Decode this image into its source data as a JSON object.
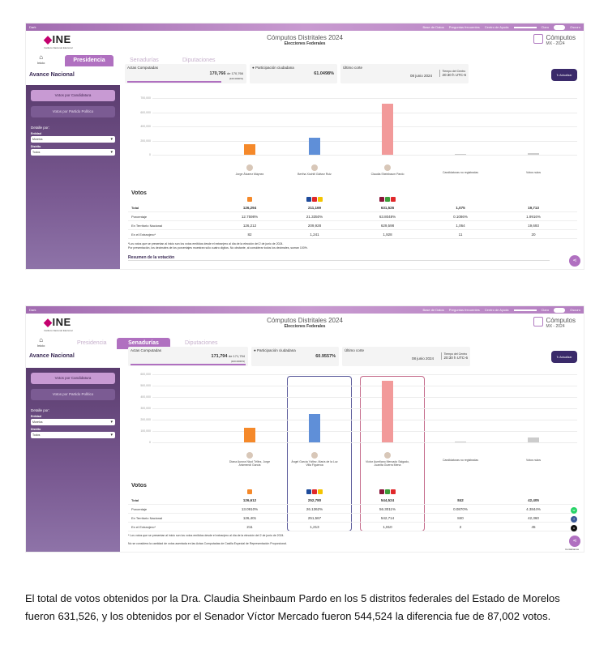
{
  "screen1": {
    "topbar": {
      "left_label": "Dark",
      "links": [
        "Base de Datos",
        "Preguntas frecuentes",
        "Centro de Ayuda"
      ],
      "light": "Claro",
      "dark": "Oscuro"
    },
    "logo": "INE",
    "logo_sub": "Instituto Nacional Electoral",
    "title": "Cómputos Distritales 2024",
    "subtitle": "Elecciones Federales",
    "brand": "Cómputos",
    "brand_sub": "MX - 2024",
    "home": "Inicio",
    "tabs": [
      "Presidencia",
      "Senadurías",
      "Diputaciones"
    ],
    "avance": "Avance Nacional",
    "actas": {
      "label": "Actas Computadas",
      "value": "170,766",
      "of": "de 170,766",
      "pct": "(100.0000%)"
    },
    "participacion": {
      "label": "Participación ciudadana",
      "value": "61.0498%"
    },
    "corte": {
      "label": "Último corte",
      "date": "08 junio 2024",
      "tz_label": "Tiempo del Centro",
      "tz": "20:30 h UTC-6"
    },
    "actualizar": "Actualizar",
    "sidebar": {
      "btn1": "Votos por Candidatura",
      "btn2": "Votos por Partido Político",
      "detalle": "Detalle por:",
      "entidad_label": "Entidad",
      "entidad": "Morelos",
      "distrito_label": "Distrito",
      "distrito": "Todos"
    },
    "yticks": [
      "700,000",
      "600,000",
      "400,000",
      "200,000",
      "0"
    ],
    "candidates": [
      "Jorge Álvarez Máynez",
      "Bertha Xóchitl Gálvez Ruiz",
      "Claudia Sheinbaum Pardo",
      "Candidaturas no registradas",
      "Votos nulos"
    ],
    "table": {
      "title": "Votos",
      "rows": [
        {
          "label": "Total",
          "vals": [
            "126,294",
            "211,169",
            "631,526",
            "1,075",
            "19,713"
          ]
        },
        {
          "label": "Porcentaje",
          "vals": [
            "12.7598%",
            "21.3350%",
            "63.8048%",
            "0.1086%",
            "1.9916%"
          ]
        },
        {
          "label": "En Territorio Nacional",
          "vals": [
            "126,212",
            "209,928",
            "629,598",
            "1,064",
            "19,693"
          ]
        },
        {
          "label": "En el Extranjero*",
          "vals": [
            "82",
            "1,241",
            "1,928",
            "11",
            "20"
          ]
        }
      ]
    },
    "notes": [
      "*Los votos que se presentan al inicio son los votos emitidos desde el extranjero al día de la elección del 2 de junio de 2024.",
      "Por presentación, los decimales de los porcentajes muestran sólo cuatro dígitos. No obstante, al considerar todos los decimales, suman 100%."
    ],
    "resumen": "Resumen de la votación",
    "total_votos": "Total de votos"
  },
  "screen2": {
    "topbar": {
      "left_label": "Dark",
      "links": [
        "Base de Datos",
        "Preguntas frecuentes",
        "Centro de Ayuda"
      ],
      "light": "Claro",
      "dark": "Oscuro"
    },
    "logo": "INE",
    "logo_sub": "Instituto Nacional Electoral",
    "title": "Cómputos Distritales 2024",
    "subtitle": "Elecciones Federales",
    "brand": "Cómputos",
    "brand_sub": "MX - 2024",
    "home": "Inicio",
    "tabs": [
      "Presidencia",
      "Senadurías",
      "Diputaciones"
    ],
    "avance": "Avance Nacional",
    "actas": {
      "label": "Actas Computadas",
      "value": "171,794",
      "of": "de 171,794",
      "pct": "(100.0000%)"
    },
    "participacion": {
      "label": "Participación ciudadana",
      "value": "60.9557%"
    },
    "corte": {
      "label": "Último corte",
      "date": "08 junio 2024",
      "tz_label": "Tiempo del Centro",
      "tz": "20:30 h UTC-6"
    },
    "actualizar": "Actualizar",
    "sidebar": {
      "btn1": "Votos por Candidatura",
      "btn2": "Votos por Partido Político",
      "detalle": "Detalle por:",
      "entidad_label": "Entidad",
      "entidad": "Morelos",
      "distrito_label": "Distrito",
      "distrito": "Todos"
    },
    "yticks": [
      "600,000",
      "500,000",
      "400,000",
      "300,000",
      "200,000",
      "100,000",
      "0"
    ],
    "candidates": [
      "Diana Aurora Nicol Téllez, Jorge Arizmendi García",
      "Ángel García Yáñez, María de la Luz Villa Figueroa",
      "Víctor Aureliano Mercado Salgado, Juanita Guerra Mena",
      "Candidaturas no registradas",
      "Votos nulos"
    ],
    "table": {
      "title": "Votos",
      "rows": [
        {
          "label": "Total",
          "vals": [
            "126,612",
            "252,780",
            "544,524",
            "842",
            "42,405"
          ]
        },
        {
          "label": "Porcentaje",
          "vals": [
            "13.0910%",
            "26.1362%",
            "56.3011%",
            "0.0870%",
            "4.3844%"
          ]
        },
        {
          "label": "En Territorio Nacional",
          "vals": [
            "126,401",
            "251,567",
            "542,714",
            "840",
            "42,360"
          ]
        },
        {
          "label": "En el Extranjero*",
          "vals": [
            "211",
            "1,213",
            "1,810",
            "2",
            "45"
          ]
        }
      ]
    },
    "notes": [
      "* Los votos que se presentan al inicio son los votos emitidos desde el extranjero al día de la elección del 2 de junio de 2024.",
      "No se considera la cantidad de votos asentada en las Actas Computadas de Casilla Especial de Representación Proporcional."
    ],
    "contactanos": "Contáctanos"
  },
  "chart_data": [
    {
      "type": "bar",
      "categories": [
        "Jorge Álvarez Máynez",
        "Bertha Xóchitl Gálvez Ruiz",
        "Claudia Sheinbaum Pardo",
        "Candidaturas no registradas",
        "Votos nulos"
      ],
      "values": [
        126294,
        211169,
        631526,
        1075,
        19713
      ],
      "ylim": [
        0,
        700000
      ],
      "colors": [
        "#f5892a",
        "#5f8fd8",
        "#f29a9a",
        "#cccccc",
        "#cccccc"
      ]
    },
    {
      "type": "bar",
      "categories": [
        "Diana Aurora Nicol Téllez, Jorge Arizmendi García",
        "Ángel García Yáñez, María de la Luz Villa Figueroa",
        "Víctor Aureliano Mercado Salgado, Juanita Guerra Mena",
        "Candidaturas no registradas",
        "Votos nulos"
      ],
      "values": [
        126612,
        252780,
        544524,
        842,
        42405
      ],
      "ylim": [
        0,
        600000
      ],
      "colors": [
        "#f5892a",
        "#5f8fd8",
        "#f29a9a",
        "#cccccc",
        "#cccccc"
      ]
    }
  ],
  "caption": "El total de votos obtenidos por la Dra. Claudia Sheinbaum Pardo en los 5 distritos federales del Estado de Morelos fueron 631,526, y los obtenidos por el Senador Víctor Mercado fueron 544,524 la diferencia fue de 87,002 votos."
}
